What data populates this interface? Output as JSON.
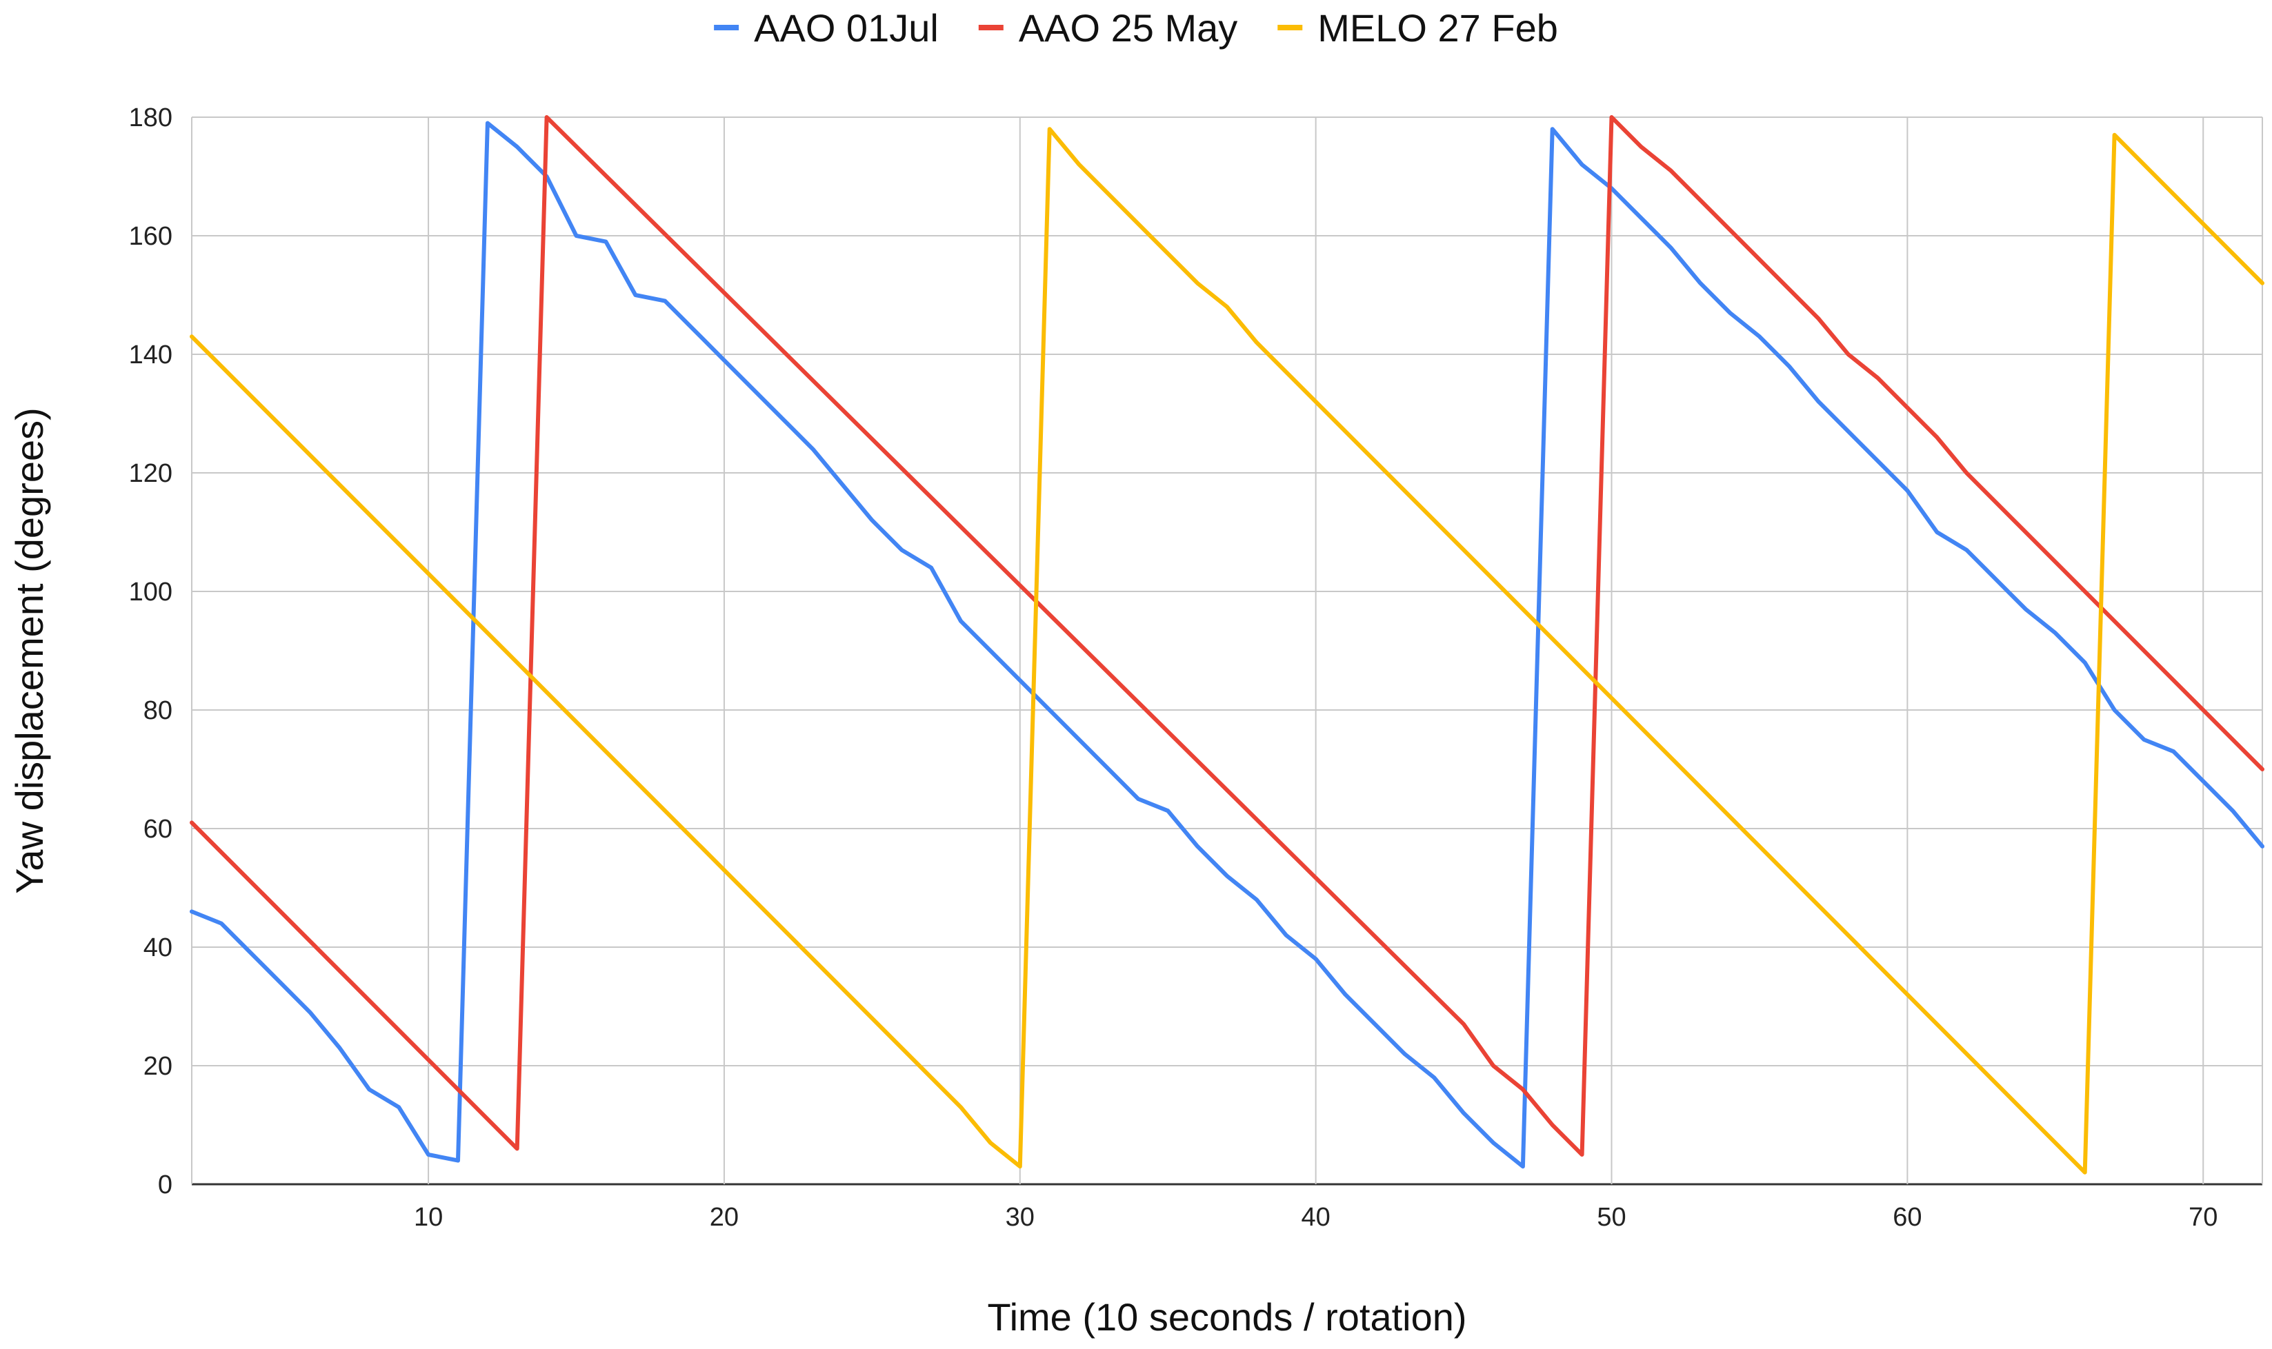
{
  "chart_data": {
    "type": "line",
    "title": "",
    "xlabel": "Time (10 seconds / rotation)",
    "ylabel": "Yaw displacement (degrees)",
    "xlim": [
      2,
      72
    ],
    "ylim": [
      0,
      180
    ],
    "x_ticks": [
      10,
      20,
      30,
      40,
      50,
      60,
      70
    ],
    "y_ticks": [
      0,
      20,
      40,
      60,
      80,
      100,
      120,
      140,
      160,
      180
    ],
    "grid": true,
    "legend_position": "top-center",
    "series": [
      {
        "name": "AAO 01Jul",
        "color": "#4285f4",
        "points": [
          [
            2,
            46
          ],
          [
            3,
            44
          ],
          [
            4,
            39
          ],
          [
            5,
            34
          ],
          [
            6,
            29
          ],
          [
            7,
            23
          ],
          [
            8,
            16
          ],
          [
            9,
            13
          ],
          [
            10,
            5
          ],
          [
            11,
            4
          ],
          [
            12,
            179
          ],
          [
            13,
            175
          ],
          [
            14,
            170
          ],
          [
            15,
            160
          ],
          [
            16,
            159
          ],
          [
            17,
            150
          ],
          [
            18,
            149
          ],
          [
            19,
            144
          ],
          [
            20,
            139
          ],
          [
            21,
            134
          ],
          [
            22,
            129
          ],
          [
            23,
            124
          ],
          [
            24,
            118
          ],
          [
            25,
            112
          ],
          [
            26,
            107
          ],
          [
            27,
            104
          ],
          [
            28,
            95
          ],
          [
            29,
            90
          ],
          [
            30,
            85
          ],
          [
            31,
            80
          ],
          [
            32,
            75
          ],
          [
            33,
            70
          ],
          [
            34,
            65
          ],
          [
            35,
            63
          ],
          [
            36,
            57
          ],
          [
            37,
            52
          ],
          [
            38,
            48
          ],
          [
            39,
            42
          ],
          [
            40,
            38
          ],
          [
            41,
            32
          ],
          [
            42,
            27
          ],
          [
            43,
            22
          ],
          [
            44,
            18
          ],
          [
            45,
            12
          ],
          [
            46,
            7
          ],
          [
            47,
            3
          ],
          [
            48,
            178
          ],
          [
            49,
            172
          ],
          [
            50,
            168
          ],
          [
            51,
            163
          ],
          [
            52,
            158
          ],
          [
            53,
            152
          ],
          [
            54,
            147
          ],
          [
            55,
            143
          ],
          [
            56,
            138
          ],
          [
            57,
            132
          ],
          [
            58,
            127
          ],
          [
            59,
            122
          ],
          [
            60,
            117
          ],
          [
            61,
            110
          ],
          [
            62,
            107
          ],
          [
            63,
            102
          ],
          [
            64,
            97
          ],
          [
            65,
            93
          ],
          [
            66,
            88
          ],
          [
            67,
            80
          ],
          [
            68,
            75
          ],
          [
            69,
            73
          ],
          [
            70,
            68
          ],
          [
            71,
            63
          ],
          [
            72,
            57
          ]
        ]
      },
      {
        "name": "AAO 25 May",
        "color": "#ea4335",
        "points": [
          [
            2,
            61
          ],
          [
            13,
            6
          ],
          [
            14,
            180
          ],
          [
            45,
            27
          ],
          [
            46,
            20
          ],
          [
            47,
            16
          ],
          [
            48,
            10
          ],
          [
            49,
            5
          ],
          [
            50,
            180
          ],
          [
            51,
            175
          ],
          [
            52,
            171
          ],
          [
            57,
            146
          ],
          [
            58,
            140
          ],
          [
            59,
            136
          ],
          [
            61,
            126
          ],
          [
            62,
            120
          ],
          [
            72,
            70
          ]
        ]
      },
      {
        "name": "MELO 27 Feb",
        "color": "#fbbc04",
        "points": [
          [
            2,
            143
          ],
          [
            28,
            13
          ],
          [
            29,
            7
          ],
          [
            30,
            3
          ],
          [
            31,
            178
          ],
          [
            32,
            172
          ],
          [
            36,
            152
          ],
          [
            37,
            148
          ],
          [
            38,
            142
          ],
          [
            66,
            2
          ],
          [
            67,
            177
          ],
          [
            72,
            152
          ]
        ]
      }
    ]
  }
}
